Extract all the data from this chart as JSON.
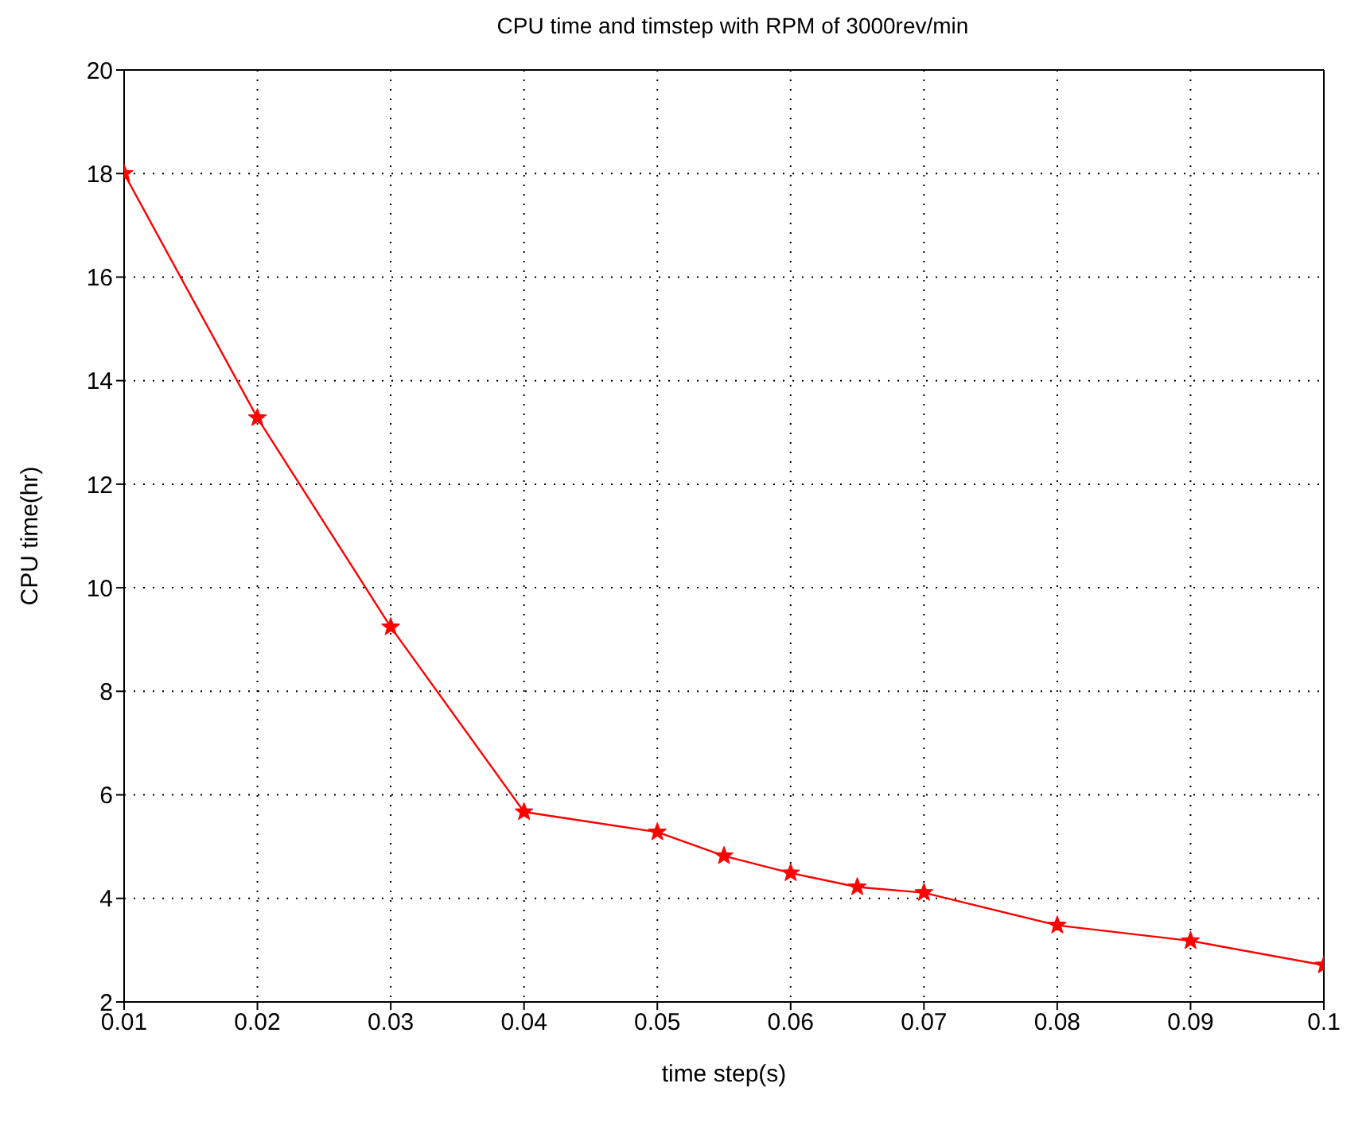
{
  "chart_data": {
    "type": "line",
    "title": "CPU time and timstep with RPM of 3000rev/min",
    "xlabel": "time step(s)",
    "ylabel": "CPU time(hr)",
    "x": [
      0.01,
      0.02,
      0.03,
      0.04,
      0.05,
      0.055,
      0.06,
      0.065,
      0.07,
      0.08,
      0.09,
      0.1
    ],
    "series": [
      {
        "color": "#ff0000",
        "values": [
          18,
          13.28,
          9.24,
          5.67,
          5.28,
          4.82,
          4.49,
          4.22,
          4.11,
          3.48,
          3.18,
          2.71
        ]
      }
    ],
    "xlim": [
      0.01,
      0.1
    ],
    "xticks": [
      0.01,
      0.02,
      0.03,
      0.04,
      0.05,
      0.06,
      0.07,
      0.08,
      0.09,
      0.1
    ],
    "ylim": [
      2,
      20
    ],
    "yticks": [
      2,
      4,
      6,
      8,
      10,
      12,
      14,
      16,
      18,
      20
    ],
    "grid": true,
    "marker": "star",
    "line_style": "solid"
  }
}
